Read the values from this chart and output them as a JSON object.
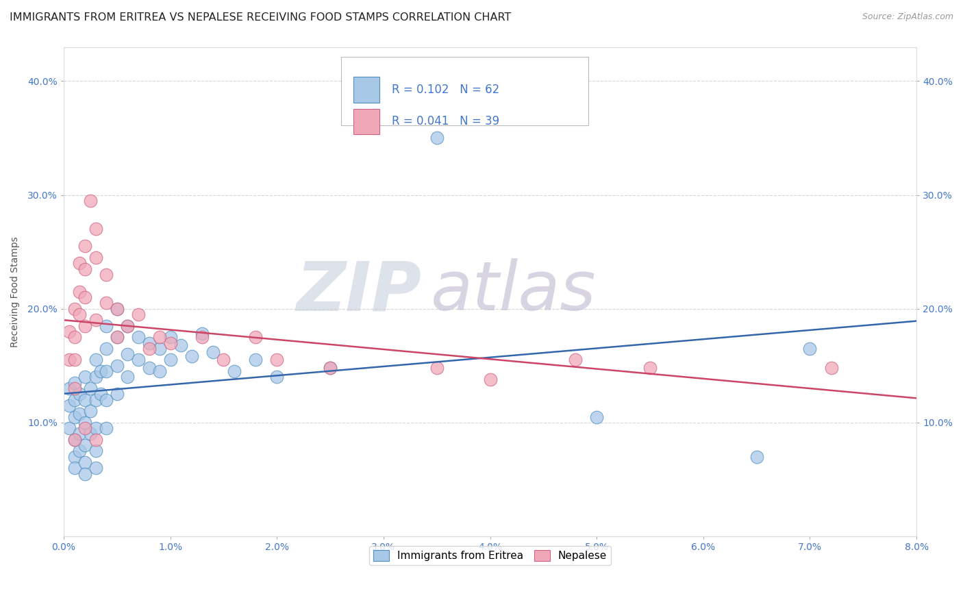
{
  "title": "IMMIGRANTS FROM ERITREA VS NEPALESE RECEIVING FOOD STAMPS CORRELATION CHART",
  "source": "Source: ZipAtlas.com",
  "ylabel": "Receiving Food Stamps",
  "xlim": [
    0.0,
    0.08
  ],
  "ylim": [
    0.0,
    0.43
  ],
  "xticks": [
    0.0,
    0.01,
    0.02,
    0.03,
    0.04,
    0.05,
    0.06,
    0.07,
    0.08
  ],
  "xticklabels": [
    "0.0%",
    "1.0%",
    "2.0%",
    "3.0%",
    "4.0%",
    "5.0%",
    "6.0%",
    "7.0%",
    "8.0%"
  ],
  "yticks": [
    0.1,
    0.2,
    0.3,
    0.4
  ],
  "yticklabels": [
    "10.0%",
    "20.0%",
    "30.0%",
    "40.0%"
  ],
  "watermark_zip": "ZIP",
  "watermark_atlas": "atlas",
  "legend_R_blue": "R = 0.102",
  "legend_N_blue": "N = 62",
  "legend_R_pink": "R = 0.041",
  "legend_N_pink": "N = 39",
  "blue_scatter_color": "#A8C8E8",
  "blue_edge_color": "#5090C0",
  "pink_scatter_color": "#F0A8B8",
  "pink_edge_color": "#D06080",
  "blue_line_color": "#3366AA",
  "pink_line_color": "#CC4466",
  "background_color": "#FFFFFF",
  "grid_color": "#CCCCCC",
  "tick_color": "#4477CC",
  "blue_scatter_x": [
    0.0005,
    0.0005,
    0.0005,
    0.001,
    0.001,
    0.001,
    0.001,
    0.001,
    0.001,
    0.0015,
    0.0015,
    0.0015,
    0.0015,
    0.002,
    0.002,
    0.002,
    0.002,
    0.002,
    0.002,
    0.0025,
    0.0025,
    0.0025,
    0.003,
    0.003,
    0.003,
    0.003,
    0.003,
    0.003,
    0.0035,
    0.0035,
    0.004,
    0.004,
    0.004,
    0.004,
    0.004,
    0.005,
    0.005,
    0.005,
    0.005,
    0.006,
    0.006,
    0.006,
    0.007,
    0.007,
    0.008,
    0.008,
    0.009,
    0.009,
    0.01,
    0.01,
    0.011,
    0.012,
    0.013,
    0.014,
    0.016,
    0.018,
    0.02,
    0.025,
    0.035,
    0.05,
    0.065,
    0.07
  ],
  "blue_scatter_y": [
    0.13,
    0.115,
    0.095,
    0.12,
    0.135,
    0.105,
    0.085,
    0.07,
    0.06,
    0.125,
    0.108,
    0.09,
    0.075,
    0.14,
    0.12,
    0.1,
    0.08,
    0.065,
    0.055,
    0.13,
    0.11,
    0.09,
    0.155,
    0.14,
    0.12,
    0.095,
    0.075,
    0.06,
    0.145,
    0.125,
    0.185,
    0.165,
    0.145,
    0.12,
    0.095,
    0.2,
    0.175,
    0.15,
    0.125,
    0.185,
    0.16,
    0.14,
    0.175,
    0.155,
    0.17,
    0.148,
    0.165,
    0.145,
    0.175,
    0.155,
    0.168,
    0.158,
    0.178,
    0.162,
    0.145,
    0.155,
    0.14,
    0.148,
    0.35,
    0.105,
    0.07,
    0.165
  ],
  "pink_scatter_x": [
    0.0005,
    0.0005,
    0.001,
    0.001,
    0.001,
    0.001,
    0.0015,
    0.0015,
    0.0015,
    0.002,
    0.002,
    0.002,
    0.002,
    0.0025,
    0.003,
    0.003,
    0.003,
    0.004,
    0.004,
    0.005,
    0.005,
    0.006,
    0.007,
    0.008,
    0.009,
    0.01,
    0.013,
    0.015,
    0.018,
    0.02,
    0.025,
    0.035,
    0.04,
    0.048,
    0.055,
    0.072,
    0.001,
    0.002,
    0.003
  ],
  "pink_scatter_y": [
    0.18,
    0.155,
    0.2,
    0.175,
    0.155,
    0.13,
    0.24,
    0.215,
    0.195,
    0.255,
    0.235,
    0.21,
    0.185,
    0.295,
    0.27,
    0.245,
    0.19,
    0.23,
    0.205,
    0.2,
    0.175,
    0.185,
    0.195,
    0.165,
    0.175,
    0.17,
    0.175,
    0.155,
    0.175,
    0.155,
    0.148,
    0.148,
    0.138,
    0.155,
    0.148,
    0.148,
    0.085,
    0.095,
    0.085
  ],
  "blue_marker_size": 180,
  "pink_marker_size": 180,
  "title_fontsize": 11.5,
  "axis_label_fontsize": 10,
  "tick_fontsize": 10,
  "watermark_fontsize_zip": 72,
  "watermark_fontsize_atlas": 72,
  "watermark_color_zip": "#C8D0DC",
  "watermark_color_atlas": "#C0B8D0"
}
